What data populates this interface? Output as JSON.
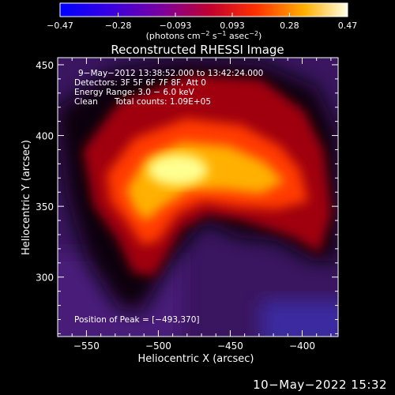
{
  "chart_data": {
    "type": "heatmap",
    "title": "Reconstructed RHESSI Image",
    "xlabel": "Heliocentric X (arcsec)",
    "ylabel": "Heliocentric Y (arcsec)",
    "xlim": [
      -570,
      -375
    ],
    "ylim": [
      258,
      455
    ],
    "x_ticks": [
      -550,
      -500,
      -450,
      -400
    ],
    "y_ticks": [
      300,
      350,
      400,
      450
    ],
    "x_tick_labels": [
      "−550",
      "−500",
      "−450",
      "−400"
    ],
    "y_tick_labels": [
      "300",
      "350",
      "400",
      "450"
    ],
    "colorbar": {
      "range": [
        -0.47,
        0.47
      ],
      "ticks": [
        -0.47,
        -0.28,
        -0.093,
        0.093,
        0.28,
        0.47
      ],
      "tick_labels": [
        "−0.47",
        "−0.28",
        "−0.093",
        "0.093",
        "0.28",
        "0.47"
      ],
      "unit_base": "(photons cm",
      "unit_exp1": "−2",
      "unit_mid": " s",
      "unit_exp2": "−1",
      "unit_after": " asec",
      "unit_exp3": "−2",
      "unit_end": ")"
    },
    "annotations": {
      "time_range": "9−May−2012 13:38:52.000 to 13:42:24.000",
      "detectors": "Detectors: 3F 5F 6F 7F 8F, Att 0",
      "energy_range": "Energy Range: 3.0 − 6.0 keV",
      "method": "Clean",
      "total_counts": "Total counts: 1.09E+05",
      "peak": "Position of Peak = [−493,370]"
    },
    "peak_position": [
      -493,
      370
    ]
  },
  "footer": {
    "date": "10−May−2022 15:32"
  },
  "colors": {
    "background": "#000000",
    "text": "#ffffff"
  }
}
